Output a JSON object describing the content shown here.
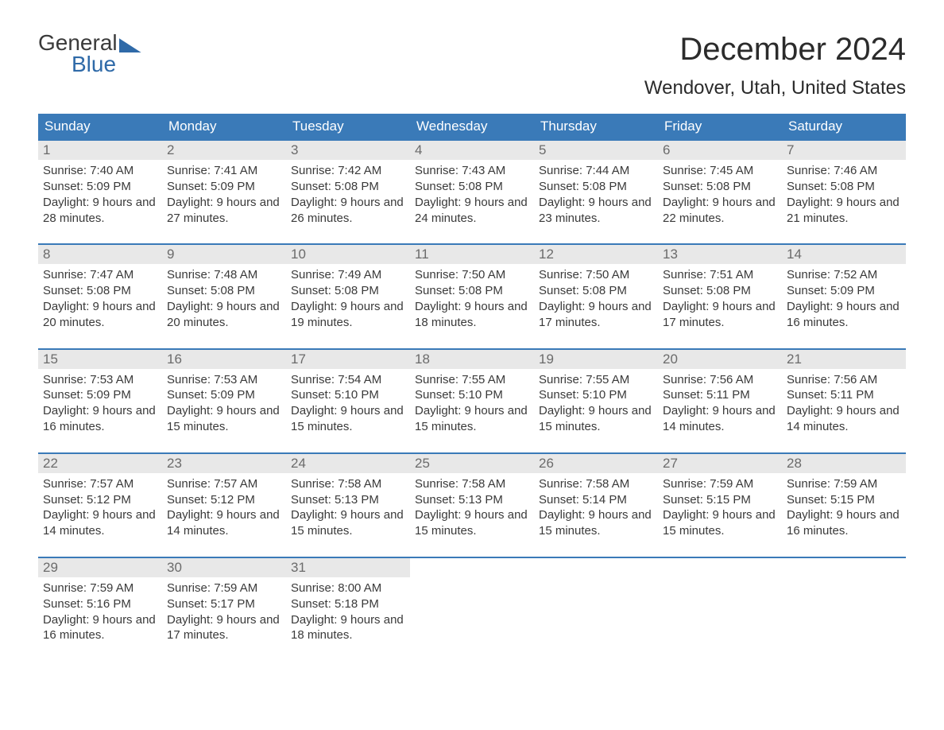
{
  "brand": {
    "line1": "General",
    "line2": "Blue"
  },
  "title": "December 2024",
  "location": "Wendover, Utah, United States",
  "colors": {
    "header_bg": "#3a7ab8",
    "header_text": "#ffffff",
    "daynum_bg": "#e8e8e8",
    "daynum_text": "#6b6b6b",
    "body_text": "#3a3a3a",
    "rule": "#3a7ab8",
    "brand_accent": "#2f6aa8"
  },
  "weekdays": [
    "Sunday",
    "Monday",
    "Tuesday",
    "Wednesday",
    "Thursday",
    "Friday",
    "Saturday"
  ],
  "labels": {
    "sunrise": "Sunrise:",
    "sunset": "Sunset:",
    "daylight": "Daylight:"
  },
  "days": [
    {
      "n": 1,
      "sunrise": "7:40 AM",
      "sunset": "5:09 PM",
      "daylight": "9 hours and 28 minutes."
    },
    {
      "n": 2,
      "sunrise": "7:41 AM",
      "sunset": "5:09 PM",
      "daylight": "9 hours and 27 minutes."
    },
    {
      "n": 3,
      "sunrise": "7:42 AM",
      "sunset": "5:08 PM",
      "daylight": "9 hours and 26 minutes."
    },
    {
      "n": 4,
      "sunrise": "7:43 AM",
      "sunset": "5:08 PM",
      "daylight": "9 hours and 24 minutes."
    },
    {
      "n": 5,
      "sunrise": "7:44 AM",
      "sunset": "5:08 PM",
      "daylight": "9 hours and 23 minutes."
    },
    {
      "n": 6,
      "sunrise": "7:45 AM",
      "sunset": "5:08 PM",
      "daylight": "9 hours and 22 minutes."
    },
    {
      "n": 7,
      "sunrise": "7:46 AM",
      "sunset": "5:08 PM",
      "daylight": "9 hours and 21 minutes."
    },
    {
      "n": 8,
      "sunrise": "7:47 AM",
      "sunset": "5:08 PM",
      "daylight": "9 hours and 20 minutes."
    },
    {
      "n": 9,
      "sunrise": "7:48 AM",
      "sunset": "5:08 PM",
      "daylight": "9 hours and 20 minutes."
    },
    {
      "n": 10,
      "sunrise": "7:49 AM",
      "sunset": "5:08 PM",
      "daylight": "9 hours and 19 minutes."
    },
    {
      "n": 11,
      "sunrise": "7:50 AM",
      "sunset": "5:08 PM",
      "daylight": "9 hours and 18 minutes."
    },
    {
      "n": 12,
      "sunrise": "7:50 AM",
      "sunset": "5:08 PM",
      "daylight": "9 hours and 17 minutes."
    },
    {
      "n": 13,
      "sunrise": "7:51 AM",
      "sunset": "5:08 PM",
      "daylight": "9 hours and 17 minutes."
    },
    {
      "n": 14,
      "sunrise": "7:52 AM",
      "sunset": "5:09 PM",
      "daylight": "9 hours and 16 minutes."
    },
    {
      "n": 15,
      "sunrise": "7:53 AM",
      "sunset": "5:09 PM",
      "daylight": "9 hours and 16 minutes."
    },
    {
      "n": 16,
      "sunrise": "7:53 AM",
      "sunset": "5:09 PM",
      "daylight": "9 hours and 15 minutes."
    },
    {
      "n": 17,
      "sunrise": "7:54 AM",
      "sunset": "5:10 PM",
      "daylight": "9 hours and 15 minutes."
    },
    {
      "n": 18,
      "sunrise": "7:55 AM",
      "sunset": "5:10 PM",
      "daylight": "9 hours and 15 minutes."
    },
    {
      "n": 19,
      "sunrise": "7:55 AM",
      "sunset": "5:10 PM",
      "daylight": "9 hours and 15 minutes."
    },
    {
      "n": 20,
      "sunrise": "7:56 AM",
      "sunset": "5:11 PM",
      "daylight": "9 hours and 14 minutes."
    },
    {
      "n": 21,
      "sunrise": "7:56 AM",
      "sunset": "5:11 PM",
      "daylight": "9 hours and 14 minutes."
    },
    {
      "n": 22,
      "sunrise": "7:57 AM",
      "sunset": "5:12 PM",
      "daylight": "9 hours and 14 minutes."
    },
    {
      "n": 23,
      "sunrise": "7:57 AM",
      "sunset": "5:12 PM",
      "daylight": "9 hours and 14 minutes."
    },
    {
      "n": 24,
      "sunrise": "7:58 AM",
      "sunset": "5:13 PM",
      "daylight": "9 hours and 15 minutes."
    },
    {
      "n": 25,
      "sunrise": "7:58 AM",
      "sunset": "5:13 PM",
      "daylight": "9 hours and 15 minutes."
    },
    {
      "n": 26,
      "sunrise": "7:58 AM",
      "sunset": "5:14 PM",
      "daylight": "9 hours and 15 minutes."
    },
    {
      "n": 27,
      "sunrise": "7:59 AM",
      "sunset": "5:15 PM",
      "daylight": "9 hours and 15 minutes."
    },
    {
      "n": 28,
      "sunrise": "7:59 AM",
      "sunset": "5:15 PM",
      "daylight": "9 hours and 16 minutes."
    },
    {
      "n": 29,
      "sunrise": "7:59 AM",
      "sunset": "5:16 PM",
      "daylight": "9 hours and 16 minutes."
    },
    {
      "n": 30,
      "sunrise": "7:59 AM",
      "sunset": "5:17 PM",
      "daylight": "9 hours and 17 minutes."
    },
    {
      "n": 31,
      "sunrise": "8:00 AM",
      "sunset": "5:18 PM",
      "daylight": "9 hours and 18 minutes."
    }
  ],
  "grid": {
    "start_weekday_index": 0,
    "rows": 5,
    "cols": 7
  }
}
